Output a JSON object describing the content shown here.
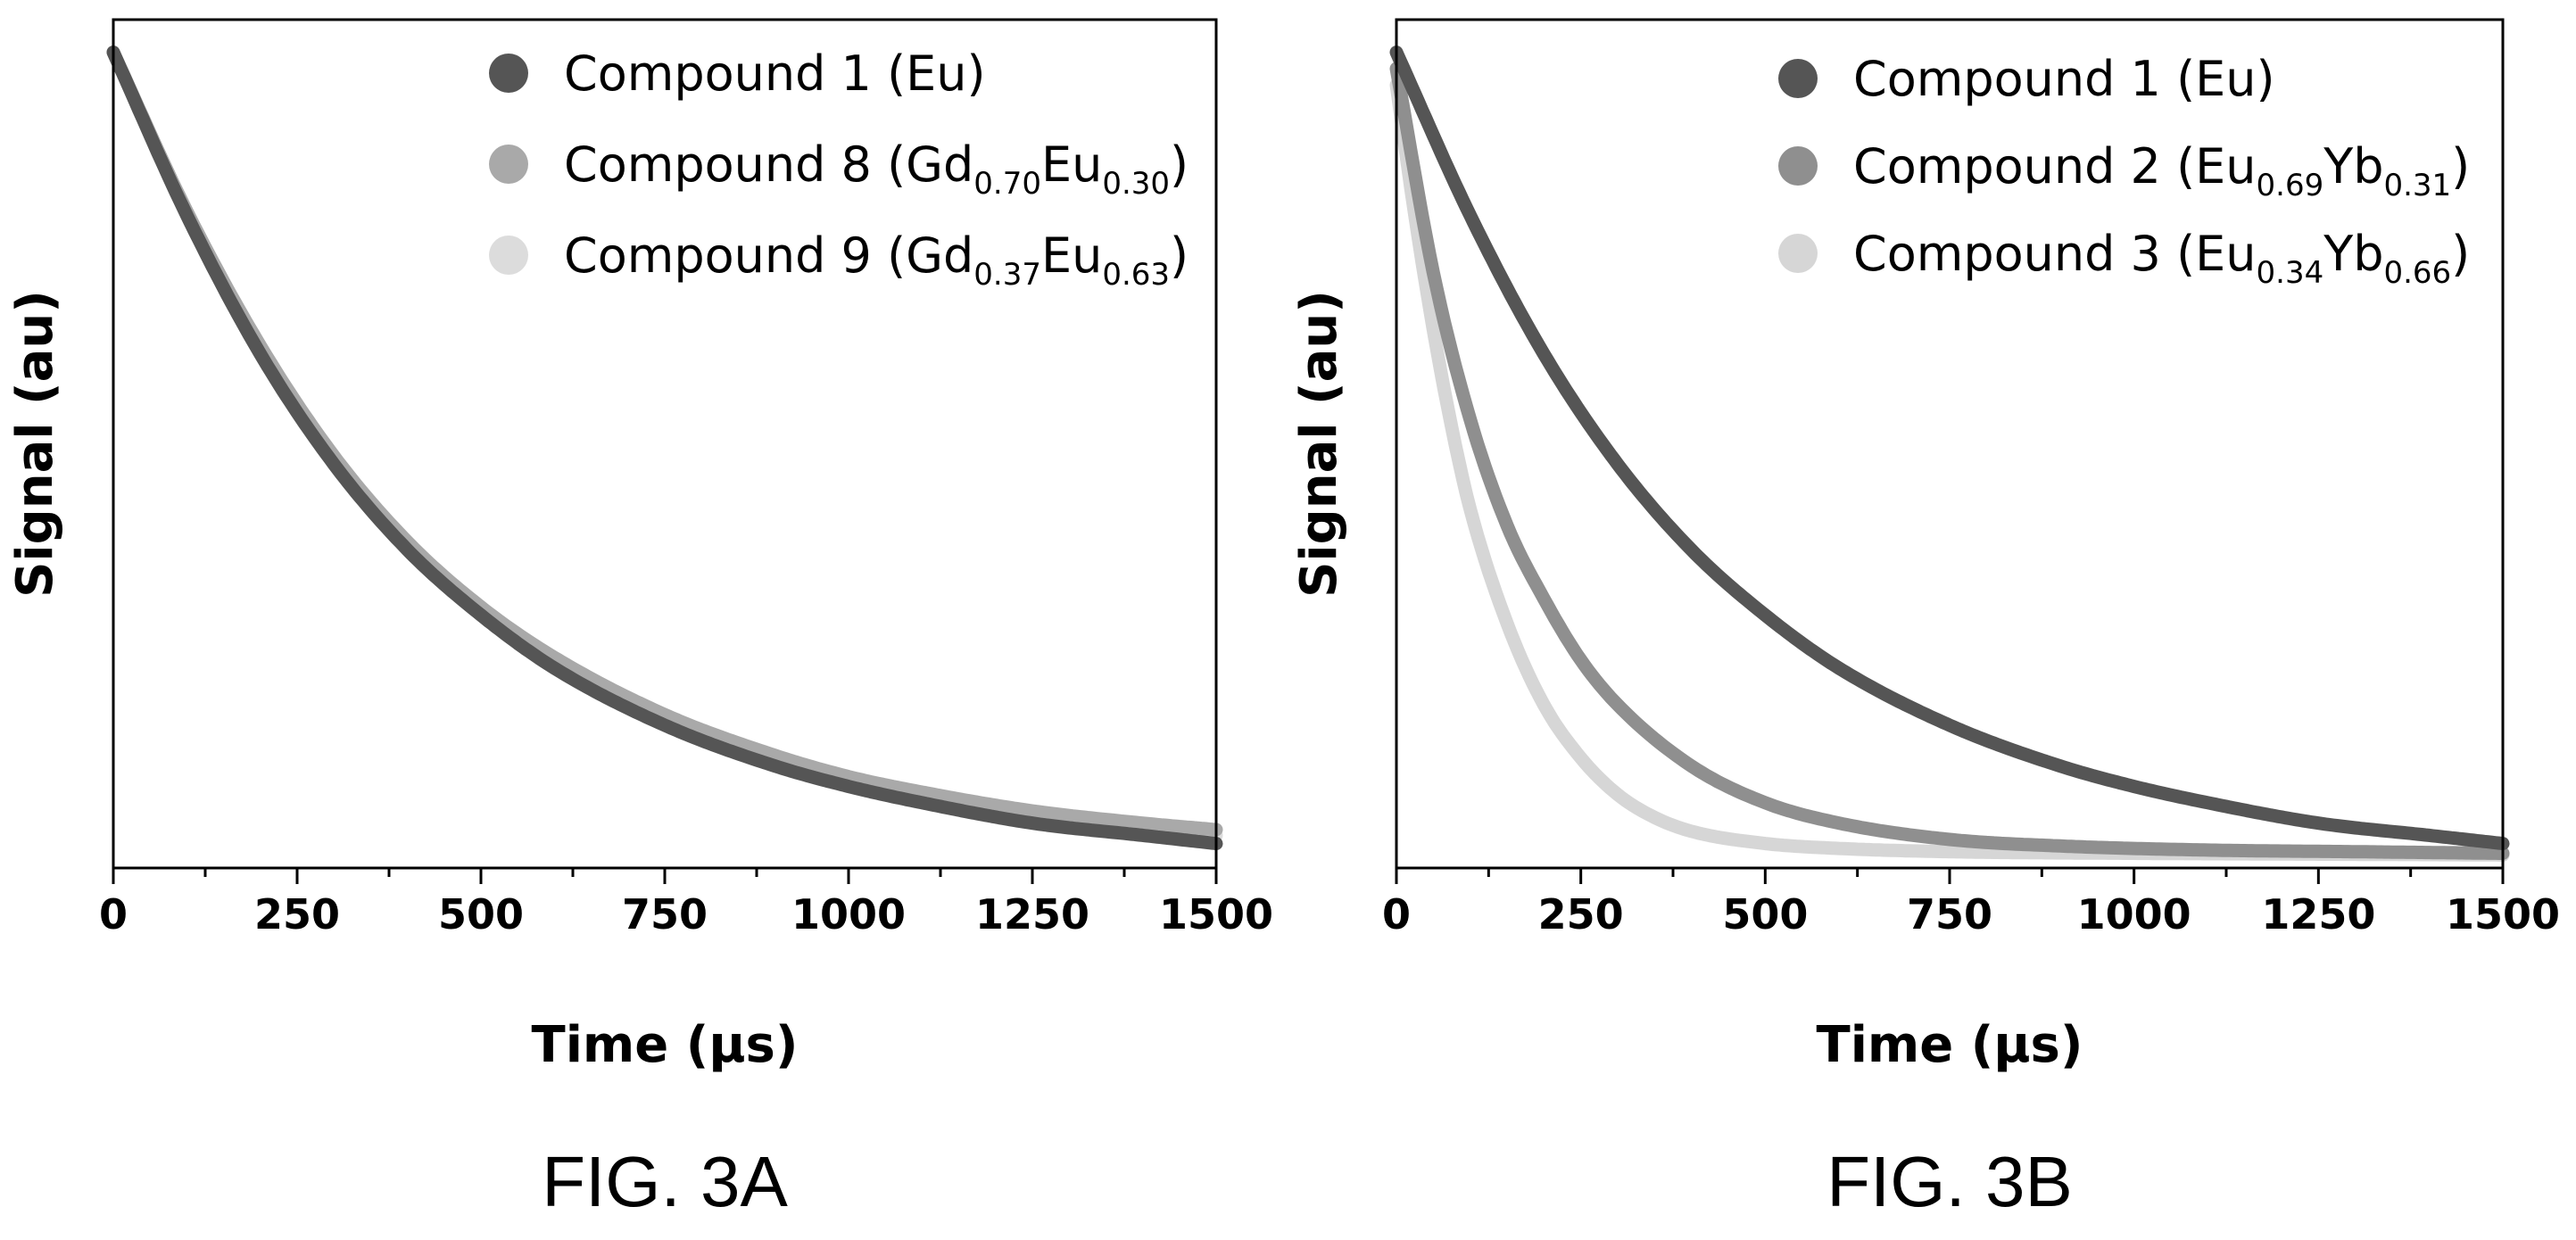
{
  "chart_data": [
    {
      "type": "scatter",
      "figure_label": "FIG. 3A",
      "xlabel": "Time (μs)",
      "ylabel": "Signal (au)",
      "xlim": [
        0,
        1500
      ],
      "ylim": [
        0,
        1.04
      ],
      "x_ticks": [
        "0",
        "250",
        "500",
        "750",
        "1000",
        "1250",
        "1500"
      ],
      "y_ticks_labeled": false,
      "grid": false,
      "legend_position": "top-right",
      "series": [
        {
          "name": "Compound 1 (Eu)",
          "label_parts": [
            {
              "t": "Compound 1 (Eu)",
              "sub": false
            }
          ],
          "color": "#555555",
          "x": [
            0,
            100,
            200,
            300,
            400,
            500,
            600,
            750,
            900,
            1000,
            1100,
            1250,
            1400,
            1500
          ],
          "y": [
            1.0,
            0.8,
            0.63,
            0.495,
            0.39,
            0.31,
            0.245,
            0.175,
            0.125,
            0.1,
            0.08,
            0.055,
            0.04,
            0.03
          ]
        },
        {
          "name": "Compound 8 (Gd0.70Eu0.30)",
          "label_parts": [
            {
              "t": "Compound 8 (Gd",
              "sub": false
            },
            {
              "t": "0.70",
              "sub": true
            },
            {
              "t": "Eu",
              "sub": false
            },
            {
              "t": "0.30",
              "sub": true
            },
            {
              "t": ")",
              "sub": false
            }
          ],
          "color": "#a9a9a9",
          "x": [
            0,
            100,
            200,
            300,
            400,
            500,
            600,
            750,
            900,
            1000,
            1100,
            1250,
            1400,
            1500
          ],
          "y": [
            1.0,
            0.805,
            0.64,
            0.505,
            0.4,
            0.32,
            0.258,
            0.188,
            0.138,
            0.112,
            0.093,
            0.07,
            0.055,
            0.047
          ]
        },
        {
          "name": "Compound 9 (Gd0.37Eu0.63)",
          "label_parts": [
            {
              "t": "Compound 9 (Gd",
              "sub": false
            },
            {
              "t": "0.37",
              "sub": true
            },
            {
              "t": "Eu",
              "sub": false
            },
            {
              "t": "0.63",
              "sub": true
            },
            {
              "t": ")",
              "sub": false
            }
          ],
          "color": "#dcdcdc",
          "x": [
            0,
            100,
            200,
            300,
            400,
            500,
            600,
            750,
            900,
            1000,
            1100,
            1250,
            1400,
            1500
          ],
          "y": [
            1.0,
            0.802,
            0.635,
            0.5,
            0.395,
            0.315,
            0.25,
            0.18,
            0.13,
            0.105,
            0.086,
            0.062,
            0.047,
            0.04
          ]
        }
      ]
    },
    {
      "type": "scatter",
      "figure_label": "FIG. 3B",
      "xlabel": "Time (μs)",
      "ylabel": "Signal (au)",
      "xlim": [
        0,
        1500
      ],
      "ylim": [
        0,
        1.04
      ],
      "x_ticks": [
        "0",
        "250",
        "500",
        "750",
        "1000",
        "1250",
        "1500"
      ],
      "y_ticks_labeled": false,
      "grid": false,
      "legend_position": "top-right",
      "series": [
        {
          "name": "Compound 1 (Eu)",
          "label_parts": [
            {
              "t": "Compound 1 (Eu)",
              "sub": false
            }
          ],
          "color": "#555555",
          "x": [
            0,
            100,
            200,
            300,
            400,
            500,
            600,
            750,
            900,
            1000,
            1100,
            1250,
            1400,
            1500
          ],
          "y": [
            1.0,
            0.8,
            0.63,
            0.495,
            0.39,
            0.31,
            0.245,
            0.175,
            0.125,
            0.1,
            0.08,
            0.055,
            0.04,
            0.03
          ]
        },
        {
          "name": "Compound 2 (Eu0.69Yb0.31)",
          "label_parts": [
            {
              "t": "Compound 2 (Eu",
              "sub": false
            },
            {
              "t": "0.69",
              "sub": true
            },
            {
              "t": "Yb",
              "sub": false
            },
            {
              "t": "0.31",
              "sub": true
            },
            {
              "t": ")",
              "sub": false
            }
          ],
          "color": "#8f8f8f",
          "x": [
            0,
            50,
            100,
            150,
            200,
            250,
            300,
            400,
            500,
            600,
            750,
            900,
            1100,
            1300,
            1500
          ],
          "y": [
            0.98,
            0.73,
            0.55,
            0.42,
            0.33,
            0.255,
            0.2,
            0.125,
            0.08,
            0.055,
            0.035,
            0.027,
            0.022,
            0.02,
            0.018
          ]
        },
        {
          "name": "Compound 3 (Eu0.34Yb0.66)",
          "label_parts": [
            {
              "t": "Compound 3 (Eu",
              "sub": false
            },
            {
              "t": "0.34",
              "sub": true
            },
            {
              "t": "Yb",
              "sub": false
            },
            {
              "t": "0.66",
              "sub": true
            },
            {
              "t": ")",
              "sub": false
            }
          ],
          "color": "#d6d6d6",
          "x": [
            0,
            25,
            50,
            75,
            100,
            150,
            200,
            250,
            300,
            350,
            400,
            500,
            600,
            750,
            1000,
            1250,
            1500
          ],
          "y": [
            0.96,
            0.8,
            0.66,
            0.54,
            0.44,
            0.3,
            0.2,
            0.135,
            0.09,
            0.062,
            0.045,
            0.03,
            0.024,
            0.02,
            0.018,
            0.017,
            0.016
          ]
        }
      ]
    }
  ]
}
